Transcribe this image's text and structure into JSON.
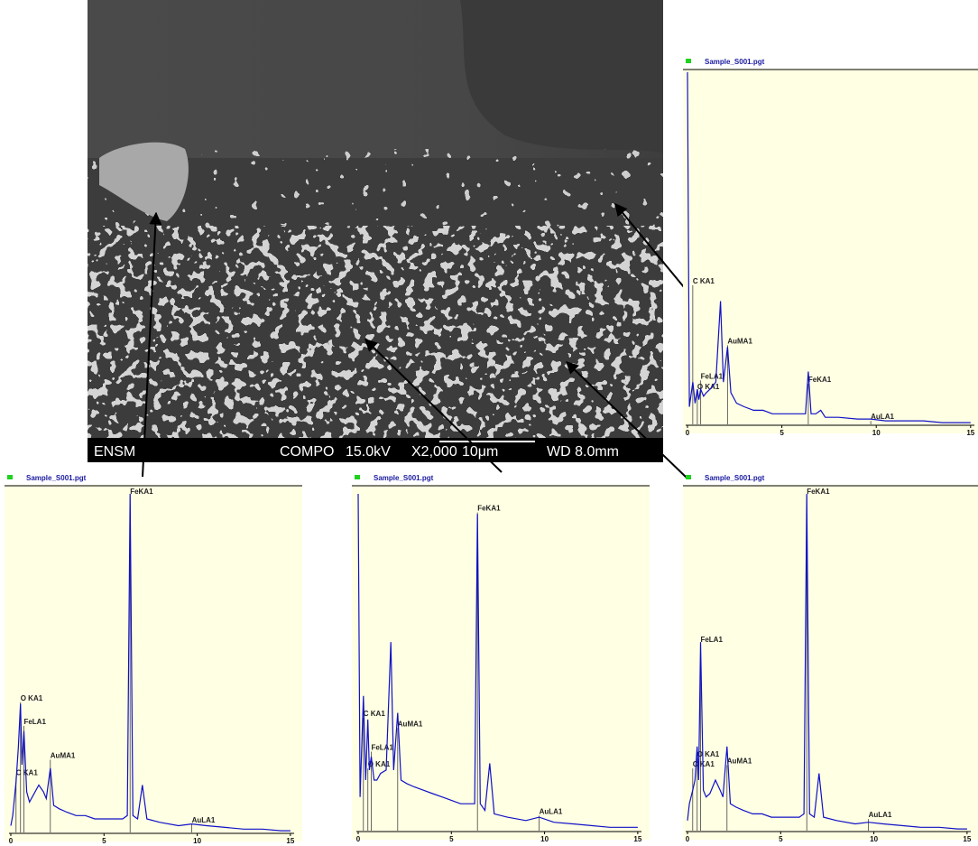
{
  "image": {
    "footer": [
      "ENSM",
      "COMPO",
      "15.0kV",
      "X2,000",
      "10μm",
      "WD 8.0mm"
    ]
  },
  "chart_data": [
    {
      "type": "line",
      "title": "Sample_S001.pgt",
      "color": "#1010c8",
      "x": [
        0,
        0.1,
        0.28,
        0.4,
        0.52,
        0.6,
        0.7,
        0.85,
        1.0,
        1.2,
        1.5,
        1.75,
        1.9,
        2.12,
        2.3,
        2.6,
        3,
        3.5,
        4,
        4.5,
        5,
        5.5,
        6,
        6.25,
        6.4,
        6.55,
        6.8,
        7.06,
        7.3,
        8,
        9,
        9.71,
        10.5,
        11.5,
        12.5,
        13.5,
        14.5,
        15
      ],
      "values": [
        100,
        5,
        12,
        6,
        10,
        7,
        10,
        8,
        9,
        10,
        12,
        35,
        12,
        22,
        9,
        6,
        5,
        4,
        4,
        3,
        3,
        3,
        3,
        3,
        15,
        3,
        3,
        4,
        2,
        2,
        1.5,
        1.5,
        1,
        1,
        1,
        0.5,
        0.5,
        0.5
      ],
      "xlim": [
        0,
        15.2
      ],
      "xticks": [
        0,
        5,
        10,
        15
      ],
      "ylim": [
        0,
        100
      ],
      "annotations": [
        {
          "text": "C KA1",
          "x": 0.28,
          "y": 40
        },
        {
          "text": "AuMA1",
          "x": 2.12,
          "y": 23
        },
        {
          "text": "FeLA1",
          "x": 0.7,
          "y": 13
        },
        {
          "text": "O KA1",
          "x": 0.52,
          "y": 10
        },
        {
          "text": "FeKA1",
          "x": 6.4,
          "y": 12
        },
        {
          "text": "AuLA1",
          "x": 9.71,
          "y": 1.5
        }
      ]
    },
    {
      "type": "line",
      "title": "Sample_S001.pgt",
      "color": "#1010c8",
      "x": [
        0,
        0.1,
        0.28,
        0.4,
        0.52,
        0.6,
        0.7,
        0.85,
        1.0,
        1.2,
        1.5,
        1.75,
        1.9,
        2.12,
        2.3,
        2.6,
        3,
        3.5,
        4,
        4.5,
        5,
        5.5,
        6,
        6.25,
        6.4,
        6.55,
        6.8,
        7.06,
        7.3,
        8,
        9,
        9.71,
        10.5,
        11.5,
        12.5,
        13.5,
        14.5,
        15
      ],
      "values": [
        2,
        5,
        15,
        25,
        38,
        20,
        30,
        12,
        9,
        11,
        14,
        12,
        10,
        19,
        8,
        7,
        6,
        5,
        5,
        4,
        4,
        4,
        4,
        5,
        100,
        5,
        4,
        14,
        4,
        3,
        2,
        2.5,
        2,
        1.5,
        1,
        1,
        0.5,
        0.5
      ],
      "xlim": [
        0,
        15.2
      ],
      "xticks": [
        0,
        5,
        10,
        15
      ],
      "ylim": [
        0,
        100
      ],
      "annotations": [
        {
          "text": "FeKA1",
          "x": 6.4,
          "y": 100
        },
        {
          "text": "O KA1",
          "x": 0.52,
          "y": 39
        },
        {
          "text": "FeLA1",
          "x": 0.7,
          "y": 32
        },
        {
          "text": "AuMA1",
          "x": 2.12,
          "y": 22
        },
        {
          "text": "C KA1",
          "x": 0.28,
          "y": 17
        },
        {
          "text": "AuLA1",
          "x": 9.71,
          "y": 3
        }
      ]
    },
    {
      "type": "line",
      "title": "Sample_S001.pgt",
      "color": "#1010c8",
      "x": [
        0,
        0.1,
        0.28,
        0.4,
        0.52,
        0.6,
        0.7,
        0.85,
        1.0,
        1.2,
        1.5,
        1.75,
        1.9,
        2.12,
        2.3,
        2.6,
        3,
        3.5,
        4,
        4.5,
        5,
        5.5,
        6,
        6.25,
        6.4,
        6.55,
        6.8,
        7.06,
        7.3,
        8,
        9,
        9.71,
        10.5,
        11.5,
        12.5,
        13.5,
        14.5,
        15
      ],
      "values": [
        100,
        10,
        40,
        15,
        33,
        18,
        22,
        15,
        15,
        17,
        18,
        56,
        18,
        35,
        15,
        14,
        13,
        12,
        11,
        10,
        9,
        8,
        8,
        8,
        94,
        8,
        6,
        20,
        5,
        4,
        3,
        4,
        2.5,
        2,
        1.5,
        1,
        1,
        1
      ],
      "xlim": [
        0,
        15.2
      ],
      "xticks": [
        0,
        5,
        10,
        15
      ],
      "ylim": [
        0,
        100
      ],
      "annotations": [
        {
          "text": "FeKA1",
          "x": 6.4,
          "y": 95
        },
        {
          "text": "C KA1",
          "x": 0.28,
          "y": 34
        },
        {
          "text": "AuMA1",
          "x": 2.12,
          "y": 31
        },
        {
          "text": "FeLA1",
          "x": 0.7,
          "y": 24
        },
        {
          "text": "O KA1",
          "x": 0.52,
          "y": 19
        },
        {
          "text": "AuLA1",
          "x": 9.71,
          "y": 5
        }
      ]
    },
    {
      "type": "line",
      "title": "Sample_S001.pgt",
      "color": "#1010c8",
      "x": [
        0,
        0.1,
        0.28,
        0.4,
        0.52,
        0.6,
        0.7,
        0.85,
        1.0,
        1.2,
        1.5,
        1.75,
        1.9,
        2.12,
        2.3,
        2.6,
        3,
        3.5,
        4,
        4.5,
        5,
        5.5,
        6,
        6.25,
        6.4,
        6.55,
        6.8,
        7.06,
        7.3,
        8,
        9,
        9.71,
        10.5,
        11.5,
        12.5,
        13.5,
        14.5,
        15
      ],
      "values": [
        3,
        8,
        12,
        15,
        25,
        15,
        56,
        12,
        10,
        11,
        15,
        12,
        10,
        25,
        8,
        7,
        6,
        5,
        5,
        4,
        4,
        4,
        4,
        5,
        100,
        5,
        4,
        17,
        4,
        3,
        2,
        2.5,
        2,
        1.5,
        1,
        1,
        0.5,
        0.5
      ],
      "xlim": [
        0,
        15.2
      ],
      "xticks": [
        0,
        5,
        10,
        15
      ],
      "ylim": [
        0,
        100
      ],
      "annotations": [
        {
          "text": "FeKA1",
          "x": 6.4,
          "y": 100
        },
        {
          "text": "FeLA1",
          "x": 0.7,
          "y": 56
        },
        {
          "text": "O KA1",
          "x": 0.52,
          "y": 22
        },
        {
          "text": "C KA1",
          "x": 0.28,
          "y": 19
        },
        {
          "text": "AuMA1",
          "x": 2.12,
          "y": 20
        },
        {
          "text": "AuLA1",
          "x": 9.71,
          "y": 4
        }
      ]
    }
  ]
}
